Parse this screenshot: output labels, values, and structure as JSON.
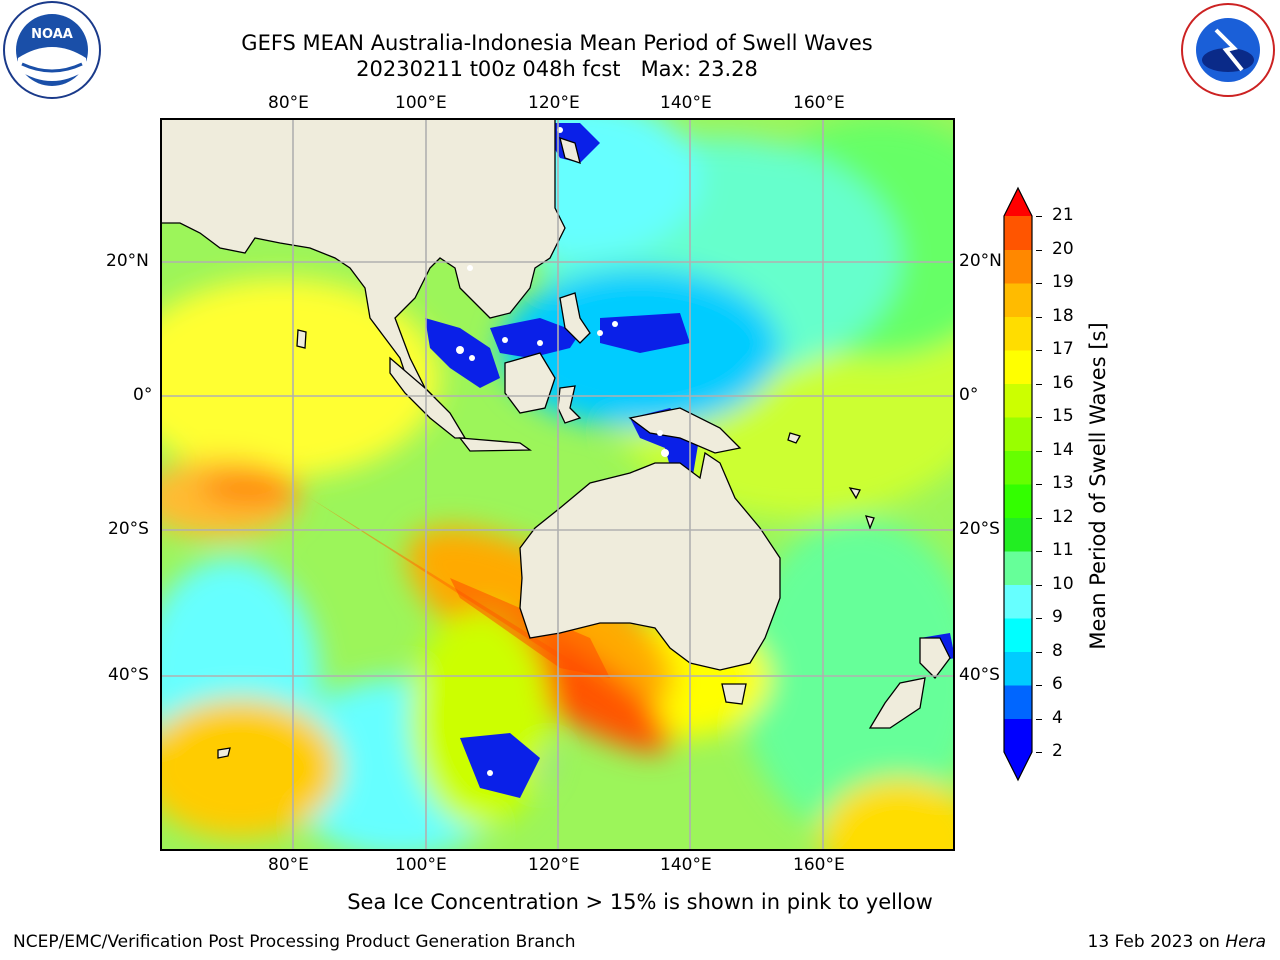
{
  "title_line1": "GEFS MEAN Australia-Indonesia Mean Period of Swell Waves",
  "title_line2": "20230211 t00z 048h fcst   Max: 23.28",
  "logos": {
    "noaa_text": "NOAA",
    "noaa_ring": "NATIONAL OCEANIC AND ATMOSPHERIC ADMINISTRATION · U.S. DEPARTMENT OF COMMERCE",
    "nws_ring": "NATIONAL WEATHER SERVICE"
  },
  "map": {
    "lon_ticks": [
      "80°E",
      "100°E",
      "120°E",
      "140°E",
      "160°E"
    ],
    "lat_ticks": [
      "20°N",
      "0°",
      "20°S",
      "40°S"
    ],
    "lon_range": [
      60,
      180
    ],
    "lat_range": [
      -68,
      42
    ],
    "land_color": "#efecdc",
    "grid_color": "#b0b0b0"
  },
  "colorbar": {
    "label": "Mean Period of Swell Waves [s]",
    "ticks": [
      "21",
      "20",
      "19",
      "18",
      "17",
      "16",
      "15",
      "14",
      "13",
      "12",
      "11",
      "10",
      "9",
      "8",
      "6",
      "4",
      "2"
    ],
    "colors": [
      "#0000ff",
      "#0066ff",
      "#00ccff",
      "#00ffff",
      "#66ffff",
      "#66ff99",
      "#22ee22",
      "#33ff00",
      "#66ff00",
      "#99ff00",
      "#ccff00",
      "#ffff00",
      "#ffdd00",
      "#ffbb00",
      "#ff8800",
      "#ff5500",
      "#ff2200"
    ],
    "over_color": "#ff0000",
    "under_color": "#0000ff"
  },
  "note": "Sea Ice Concentration > 15% is shown in pink to yellow",
  "footer_left": "NCEP/EMC/Verification Post Processing Product Generation Branch",
  "footer_date": "13 Feb 2023 on ",
  "footer_machine": "Hera"
}
